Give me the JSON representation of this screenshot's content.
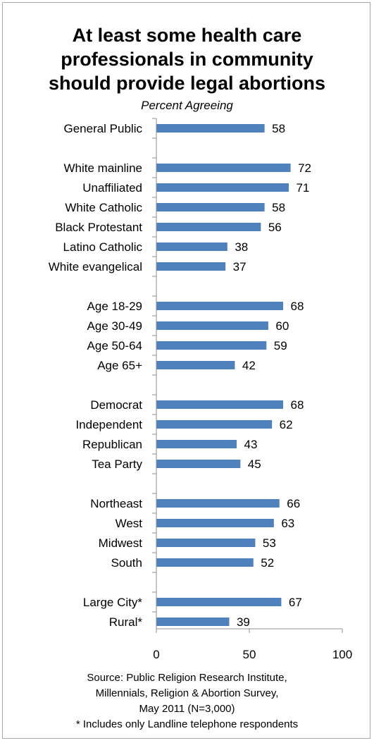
{
  "chart_data": {
    "type": "bar",
    "orientation": "horizontal",
    "title": [
      "At least some health care",
      "professionals in community",
      "should provide legal abortions"
    ],
    "subtitle": "Percent Agreeing",
    "xlim": [
      0,
      100
    ],
    "xticks": [
      0,
      50,
      100
    ],
    "groups": [
      [
        {
          "label": "General Public",
          "value": 58
        }
      ],
      [
        {
          "label": "White mainline",
          "value": 72
        },
        {
          "label": "Unaffiliated",
          "value": 71
        },
        {
          "label": "White Catholic",
          "value": 58
        },
        {
          "label": "Black Protestant",
          "value": 56
        },
        {
          "label": "Latino Catholic",
          "value": 38
        },
        {
          "label": "White evangelical",
          "value": 37
        }
      ],
      [
        {
          "label": "Age 18-29",
          "value": 68
        },
        {
          "label": "Age 30-49",
          "value": 60
        },
        {
          "label": "Age 50-64",
          "value": 59
        },
        {
          "label": "Age 65+",
          "value": 42
        }
      ],
      [
        {
          "label": "Democrat",
          "value": 68
        },
        {
          "label": "Independent",
          "value": 62
        },
        {
          "label": "Republican",
          "value": 43
        },
        {
          "label": "Tea Party",
          "value": 45
        }
      ],
      [
        {
          "label": "Northeast",
          "value": 66
        },
        {
          "label": "West",
          "value": 63
        },
        {
          "label": "Midwest",
          "value": 53
        },
        {
          "label": "South",
          "value": 52
        }
      ],
      [
        {
          "label": "Large City*",
          "value": 67
        },
        {
          "label": "Rural*",
          "value": 39
        }
      ]
    ],
    "bar_color": "#4f81bd",
    "grid": false,
    "legend": "none"
  },
  "source": [
    "Source: Public Religion Research Institute,",
    "Millennials, Religion & Abortion Survey,",
    "May 2011 (N=3,000)",
    "* Includes only Landline telephone respondents"
  ]
}
